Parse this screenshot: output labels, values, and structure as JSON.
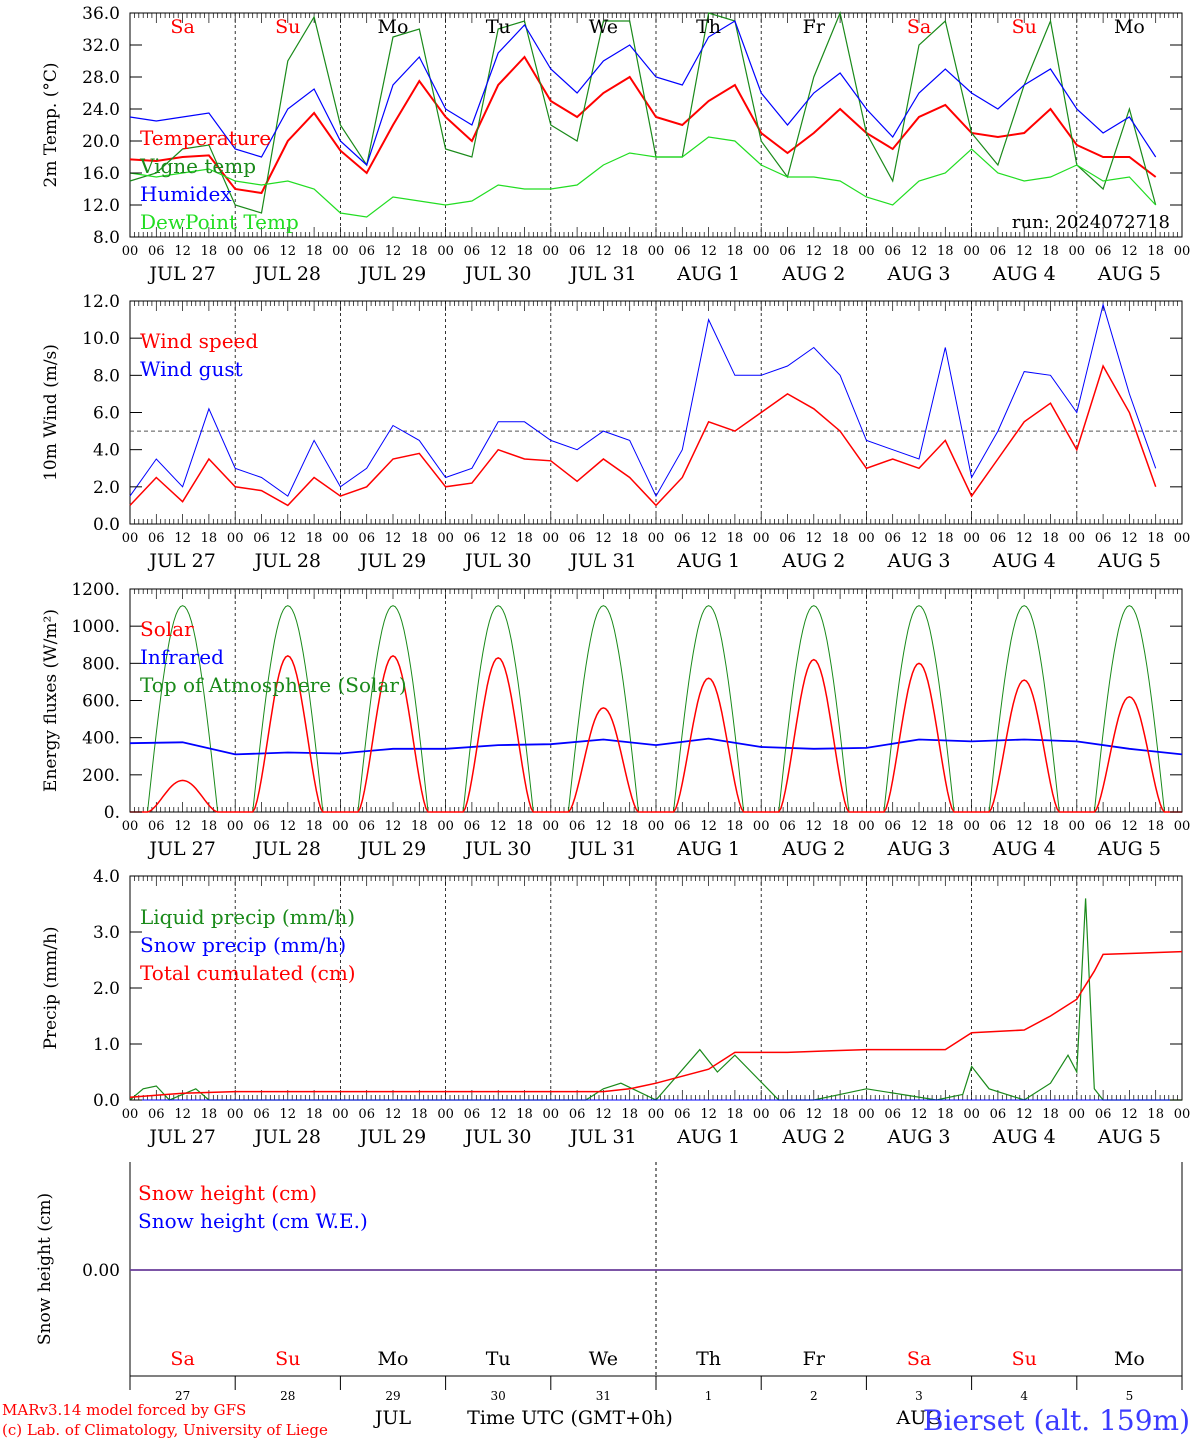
{
  "page": {
    "credit_line1": "MARv3.14 model forced by GFS",
    "credit_line2": "(c) Lab. of Climatology, University of Liege",
    "month_label": "JUL",
    "month_label2": "AUG",
    "xaxis_title": "Time UTC (GMT+0h)",
    "station": "Bierset (alt. 159m)",
    "run": "run: 2024072718"
  },
  "colors": {
    "red": "#ff0000",
    "green": "#1a8a1a",
    "blue": "#0000ff",
    "lightgreen": "#22dd22",
    "purple": "#6a3d9a"
  },
  "days": {
    "weekdays": [
      "Sa",
      "Su",
      "Mo",
      "Tu",
      "We",
      "Th",
      "Fr",
      "Sa",
      "Su",
      "Mo"
    ],
    "weekend": [
      true,
      true,
      false,
      false,
      false,
      false,
      false,
      true,
      true,
      false
    ],
    "dates": [
      "JUL 27",
      "JUL 28",
      "JUL 29",
      "JUL 30",
      "JUL 31",
      "AUG  1",
      "AUG  2",
      "AUG  3",
      "AUG  4",
      "AUG  5"
    ],
    "daynums": [
      "27",
      "28",
      "29",
      "30",
      "31",
      "1",
      "2",
      "3",
      "4",
      "5"
    ],
    "hour_ticks": [
      "00",
      "06",
      "12",
      "18"
    ],
    "final_tick": "00"
  },
  "chart_data": [
    {
      "type": "line",
      "ylabel": "2m Temp. (°C)",
      "ylim": [
        8,
        36
      ],
      "yticks": [
        "8.0",
        "12.0",
        "16.0",
        "20.0",
        "24.0",
        "28.0",
        "32.0",
        "36.0"
      ],
      "x_unit": "hours from 2024-07-27 00 UTC",
      "series": [
        {
          "name": "Temperature",
          "color": "red",
          "x": [
            0,
            6,
            12,
            18,
            24,
            30,
            36,
            42,
            48,
            54,
            60,
            66,
            72,
            78,
            84,
            90,
            96,
            102,
            108,
            114,
            120,
            126,
            132,
            138,
            144,
            150,
            156,
            162,
            168,
            174,
            180,
            186,
            192,
            198,
            204,
            210,
            216,
            222,
            228,
            234
          ],
          "y": [
            17.7,
            17.5,
            18,
            18.2,
            14,
            13.5,
            20,
            23.5,
            18.8,
            16,
            22,
            27.5,
            23,
            20,
            27,
            30.5,
            25,
            23,
            26,
            28,
            23,
            22,
            25,
            27,
            21,
            18.5,
            21,
            24,
            21,
            19,
            23,
            24.5,
            21,
            20.5,
            21,
            24,
            19.5,
            18,
            18,
            15.5
          ]
        },
        {
          "name": "Vigne temp",
          "color": "green",
          "x": [
            0,
            6,
            12,
            18,
            24,
            30,
            36,
            42,
            48,
            54,
            60,
            66,
            72,
            78,
            84,
            90,
            96,
            102,
            108,
            114,
            120,
            126,
            132,
            138,
            144,
            150,
            156,
            162,
            168,
            174,
            180,
            186,
            192,
            198,
            204,
            210,
            216,
            222,
            228,
            234
          ],
          "y": [
            15,
            16,
            19,
            19.5,
            12,
            11,
            30,
            35.5,
            22,
            17,
            33,
            34,
            19,
            18,
            34,
            35,
            22,
            20,
            35,
            35,
            18,
            18,
            36,
            35,
            20,
            15.5,
            28,
            36,
            21,
            15,
            32,
            35,
            21,
            17,
            27,
            35,
            17,
            14,
            24,
            12
          ]
        },
        {
          "name": "Humidex",
          "color": "blue",
          "x": [
            0,
            6,
            12,
            18,
            24,
            30,
            36,
            42,
            48,
            54,
            60,
            66,
            72,
            78,
            84,
            90,
            96,
            102,
            108,
            114,
            120,
            126,
            132,
            138,
            144,
            150,
            156,
            162,
            168,
            174,
            180,
            186,
            192,
            198,
            204,
            210,
            216,
            222,
            228,
            234
          ],
          "y": [
            23,
            22.5,
            23,
            23.5,
            19,
            18,
            24,
            26.5,
            20,
            17,
            27,
            30.5,
            24,
            22,
            31,
            34.5,
            29,
            26,
            30,
            32,
            28,
            27,
            33,
            35,
            26,
            22,
            26,
            28.5,
            24,
            20.5,
            26,
            29,
            26,
            24,
            27,
            29,
            24,
            21,
            23,
            18
          ]
        },
        {
          "name": "DewPoint Temp",
          "color": "lightgreen",
          "x": [
            0,
            6,
            12,
            18,
            24,
            30,
            36,
            42,
            48,
            54,
            60,
            66,
            72,
            78,
            84,
            90,
            96,
            102,
            108,
            114,
            120,
            126,
            132,
            138,
            144,
            150,
            156,
            162,
            168,
            174,
            180,
            186,
            192,
            198,
            204,
            210,
            216,
            222,
            228,
            234
          ],
          "y": [
            16,
            15.5,
            16,
            16.5,
            15,
            14.5,
            15,
            14,
            11,
            10.5,
            13,
            12.5,
            12,
            12.5,
            14.5,
            14,
            14,
            14.5,
            17,
            18.5,
            18,
            18,
            20.5,
            20,
            17,
            15.5,
            15.5,
            15,
            13,
            12,
            15,
            16,
            19,
            16,
            15,
            15.5,
            17,
            15,
            15.5,
            12
          ]
        }
      ]
    },
    {
      "type": "line",
      "ylabel": "10m Wind (m/s)",
      "ylim": [
        0,
        12
      ],
      "yticks": [
        "0.0",
        "2.0",
        "4.0",
        "6.0",
        "8.0",
        "10.0",
        "12.0"
      ],
      "x_unit": "hours from 2024-07-27 00 UTC",
      "series": [
        {
          "name": "Wind speed",
          "color": "red",
          "x": [
            0,
            6,
            12,
            18,
            24,
            30,
            36,
            42,
            48,
            54,
            60,
            66,
            72,
            78,
            84,
            90,
            96,
            102,
            108,
            114,
            120,
            126,
            132,
            138,
            144,
            150,
            156,
            162,
            168,
            174,
            180,
            186,
            192,
            198,
            204,
            210,
            216,
            222,
            228,
            234
          ],
          "y": [
            1,
            2.5,
            1.2,
            3.5,
            2,
            1.8,
            1,
            2.5,
            1.5,
            2,
            3.5,
            3.8,
            2,
            2.2,
            4,
            3.5,
            3.4,
            2.3,
            3.5,
            2.5,
            1,
            2.5,
            5.5,
            5,
            6,
            7,
            6.2,
            5,
            3,
            3.5,
            3,
            4.5,
            1.5,
            3.5,
            5.5,
            6.5,
            4,
            8.5,
            6,
            2
          ]
        },
        {
          "name": "Wind gust",
          "color": "blue",
          "x": [
            0,
            6,
            12,
            18,
            24,
            30,
            36,
            42,
            48,
            54,
            60,
            66,
            72,
            78,
            84,
            90,
            96,
            102,
            108,
            114,
            120,
            126,
            132,
            138,
            144,
            150,
            156,
            162,
            168,
            174,
            180,
            186,
            192,
            198,
            204,
            210,
            216,
            222,
            228,
            234
          ],
          "y": [
            1.5,
            3.5,
            2,
            6.2,
            3,
            2.5,
            1.5,
            4.5,
            2,
            3,
            5.3,
            4.5,
            2.5,
            3,
            5.5,
            5.5,
            4.5,
            4,
            5,
            4.5,
            1.5,
            4,
            11,
            8,
            8,
            8.5,
            9.5,
            8,
            4.5,
            4,
            3.5,
            9.5,
            2.5,
            5,
            8.2,
            8,
            6,
            11.8,
            7,
            3
          ]
        }
      ],
      "reference_line": 5
    },
    {
      "type": "line",
      "ylabel": "Energy fluxes (W/m²)",
      "ylim": [
        0,
        1200
      ],
      "yticks": [
        "0.",
        "200.",
        "400.",
        "600.",
        "800.",
        "1000.",
        "1200."
      ],
      "x_unit": "hours from 2024-07-27 00 UTC",
      "series": [
        {
          "name": "Solar",
          "color": "red",
          "peaks": [
            170,
            840,
            840,
            830,
            560,
            720,
            820,
            800,
            710,
            620
          ]
        },
        {
          "name": "Infrared",
          "color": "blue",
          "x": [
            0,
            12,
            24,
            36,
            48,
            60,
            72,
            84,
            96,
            108,
            120,
            132,
            144,
            156,
            168,
            180,
            192,
            204,
            216,
            228,
            240
          ],
          "y": [
            370,
            375,
            310,
            320,
            315,
            340,
            340,
            360,
            365,
            390,
            360,
            395,
            350,
            340,
            345,
            390,
            380,
            390,
            380,
            340,
            310
          ]
        },
        {
          "name": "Top of Atmosphere (Solar)",
          "color": "green",
          "peak": 1110
        }
      ]
    },
    {
      "type": "line",
      "ylabel": "Precip (mm/h)",
      "ylim": [
        0,
        4
      ],
      "yticks": [
        "0.0",
        "1.0",
        "2.0",
        "3.0",
        "4.0"
      ],
      "x_unit": "hours from 2024-07-27 00 UTC",
      "series": [
        {
          "name": "Liquid precip (mm/h)",
          "color": "green",
          "x": [
            0,
            3,
            6,
            9,
            12,
            15,
            18,
            24,
            96,
            104,
            108,
            112,
            120,
            130,
            134,
            138,
            148,
            156,
            162,
            168,
            184,
            190,
            192,
            196,
            204,
            210,
            214,
            216,
            218,
            220,
            222,
            224,
            240
          ],
          "y": [
            0,
            0.2,
            0.25,
            0,
            0.1,
            0.2,
            0,
            0,
            0,
            0,
            0.2,
            0.3,
            0,
            0.9,
            0.5,
            0.8,
            0,
            0,
            0.1,
            0.2,
            0,
            0.1,
            0.6,
            0.2,
            0,
            0.3,
            0.8,
            0.5,
            3.6,
            0.2,
            0,
            0,
            0
          ]
        },
        {
          "name": "Snow precip (mm/h)",
          "color": "blue",
          "x": [
            0,
            240
          ],
          "y": [
            0,
            0
          ]
        },
        {
          "name": "Total cumulated (cm)",
          "color": "red",
          "x": [
            0,
            12,
            24,
            108,
            114,
            120,
            132,
            138,
            150,
            160,
            168,
            186,
            192,
            204,
            210,
            216,
            220,
            222,
            240
          ],
          "y": [
            0.05,
            0.12,
            0.15,
            0.15,
            0.2,
            0.3,
            0.55,
            0.85,
            0.85,
            0.88,
            0.9,
            0.9,
            1.2,
            1.25,
            1.5,
            1.8,
            2.3,
            2.6,
            2.65
          ]
        }
      ]
    },
    {
      "type": "line",
      "ylabel": "Snow height (cm)",
      "yticks": [
        "0.00"
      ],
      "x_unit": "hours from 2024-07-27 00 UTC",
      "series": [
        {
          "name": "Snow height (cm)",
          "color": "red",
          "x": [
            0,
            240
          ],
          "y": [
            0,
            0
          ]
        },
        {
          "name": "Snow height (cm W.E.)",
          "color": "blue",
          "x": [
            0,
            240
          ],
          "y": [
            0,
            0
          ]
        }
      ]
    }
  ]
}
